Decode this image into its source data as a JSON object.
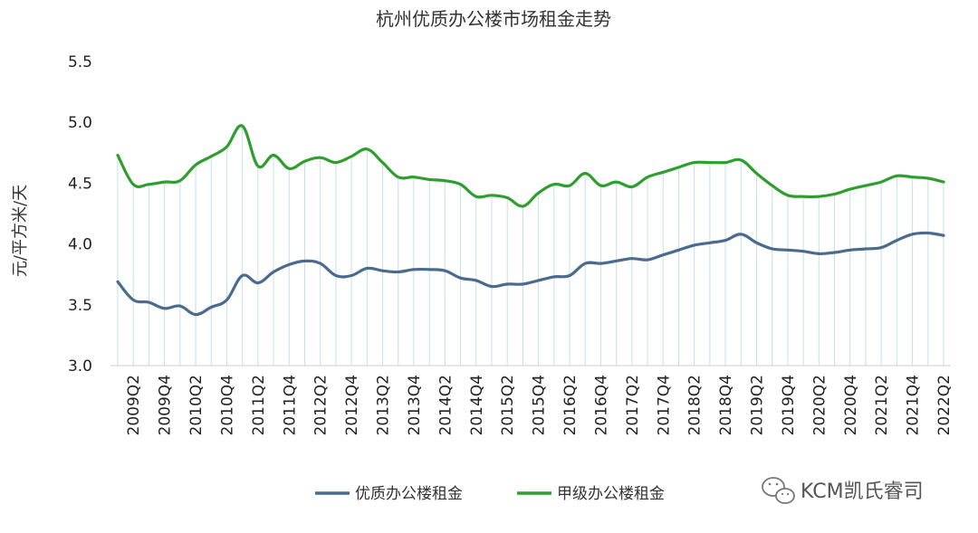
{
  "chart_data": {
    "type": "line",
    "title": "杭州优质办公楼市场租金走势",
    "xlabel": "",
    "ylabel": "元/平方米/天",
    "ylim": [
      3.0,
      5.5
    ],
    "yticks": [
      "3.0",
      "3.5",
      "4.0",
      "4.5",
      "5.0",
      "5.5"
    ],
    "x": [
      "2009Q1",
      "2009Q2",
      "2009Q3",
      "2009Q4",
      "2010Q1",
      "2010Q2",
      "2010Q3",
      "2010Q4",
      "2011Q1",
      "2011Q2",
      "2011Q3",
      "2011Q4",
      "2012Q1",
      "2012Q2",
      "2012Q3",
      "2012Q4",
      "2013Q1",
      "2013Q2",
      "2013Q3",
      "2013Q4",
      "2014Q1",
      "2014Q2",
      "2014Q3",
      "2014Q4",
      "2015Q1",
      "2015Q2",
      "2015Q3",
      "2015Q4",
      "2016Q1",
      "2016Q2",
      "2016Q3",
      "2016Q4",
      "2017Q1",
      "2017Q2",
      "2017Q3",
      "2017Q4",
      "2018Q1",
      "2018Q2",
      "2018Q3",
      "2018Q4",
      "2019Q1",
      "2019Q2",
      "2019Q3",
      "2019Q4",
      "2020Q1",
      "2020Q2",
      "2020Q3",
      "2020Q4",
      "2021Q1",
      "2021Q2",
      "2021Q3",
      "2021Q4",
      "2022Q1",
      "2022Q2"
    ],
    "tick_labels": [
      "2009Q2",
      "2009Q4",
      "2010Q2",
      "2010Q4",
      "2011Q2",
      "2011Q4",
      "2012Q2",
      "2012Q4",
      "2013Q2",
      "2013Q4",
      "2014Q2",
      "2014Q4",
      "2015Q2",
      "2015Q4",
      "2016Q2",
      "2016Q4",
      "2017Q2",
      "2017Q4",
      "2018Q2",
      "2018Q4",
      "2019Q2",
      "2019Q4",
      "2020Q2",
      "2020Q4",
      "2021Q2",
      "2021Q4",
      "2022Q2"
    ],
    "series": [
      {
        "name": "优质办公楼租金",
        "color": "#4a6a8e",
        "values": [
          3.69,
          3.54,
          3.52,
          3.47,
          3.49,
          3.42,
          3.48,
          3.54,
          3.74,
          3.68,
          3.77,
          3.83,
          3.86,
          3.84,
          3.74,
          3.74,
          3.8,
          3.78,
          3.77,
          3.79,
          3.79,
          3.78,
          3.72,
          3.7,
          3.65,
          3.67,
          3.67,
          3.7,
          3.73,
          3.74,
          3.84,
          3.84,
          3.86,
          3.88,
          3.87,
          3.91,
          3.95,
          3.99,
          4.01,
          4.03,
          4.08,
          4.01,
          3.96,
          3.95,
          3.94,
          3.92,
          3.93,
          3.95,
          3.96,
          3.97,
          4.03,
          4.08,
          4.09,
          4.07
        ]
      },
      {
        "name": "甲级办公楼租金",
        "color": "#2e9e2e",
        "values": [
          4.73,
          4.49,
          4.49,
          4.51,
          4.52,
          4.65,
          4.72,
          4.8,
          4.97,
          4.64,
          4.73,
          4.62,
          4.68,
          4.71,
          4.67,
          4.72,
          4.78,
          4.67,
          4.55,
          4.55,
          4.53,
          4.52,
          4.49,
          4.39,
          4.4,
          4.38,
          4.31,
          4.42,
          4.49,
          4.48,
          4.58,
          4.48,
          4.51,
          4.47,
          4.55,
          4.59,
          4.63,
          4.67,
          4.67,
          4.67,
          4.69,
          4.58,
          4.48,
          4.4,
          4.39,
          4.39,
          4.41,
          4.45,
          4.48,
          4.51,
          4.56,
          4.55,
          4.54,
          4.51
        ]
      }
    ],
    "legend": "bottom-center",
    "grid": "vertical drop lines"
  },
  "watermark": {
    "text": "KCM凯氏睿司",
    "icon": "wechat-icon"
  }
}
